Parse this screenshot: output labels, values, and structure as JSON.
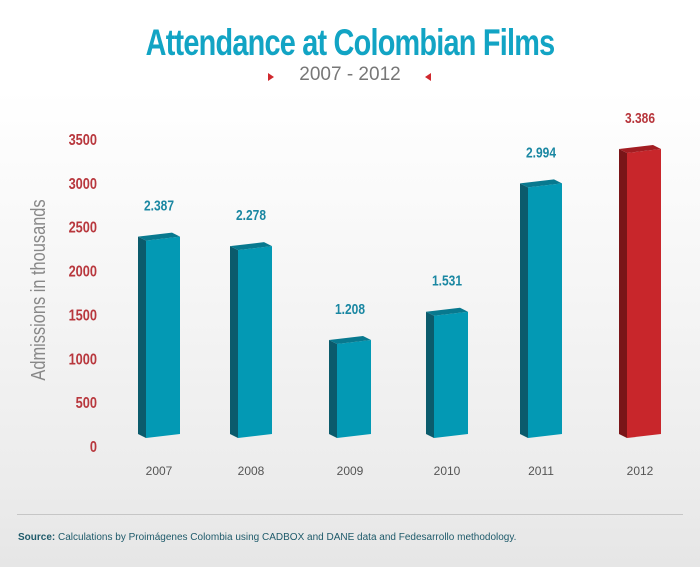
{
  "title": "Attendance at Colombian Films",
  "subtitle": "2007 - 2012",
  "source": {
    "label": "Source:",
    "text": "Calculations by Proimágenes Colombia using CADBOX and DANE data and Fedesarrollo methodology."
  },
  "chart_data": {
    "type": "bar",
    "title": "Attendance at Colombian Films",
    "subtitle": "2007 - 2012",
    "xlabel": "",
    "ylabel": "Admissions in thousands",
    "ylim": [
      0,
      3500
    ],
    "yticks": [
      "0",
      "500",
      "1000",
      "1500",
      "2000",
      "2500",
      "3000",
      "3500"
    ],
    "categories": [
      "2007",
      "2008",
      "2009",
      "2010",
      "2011",
      "2012"
    ],
    "values": [
      2387,
      2278,
      1208,
      1531,
      2994,
      3386
    ],
    "data_labels": [
      "2.387",
      "2.278",
      "1.208",
      "1.531",
      "2.994",
      "3.386"
    ],
    "colors": {
      "default": "#0399b4",
      "highlight": "#c8262b",
      "tick": "#b8373d",
      "label": "#1a87a2",
      "highlight_label": "#b8373d"
    },
    "grid": false
  }
}
